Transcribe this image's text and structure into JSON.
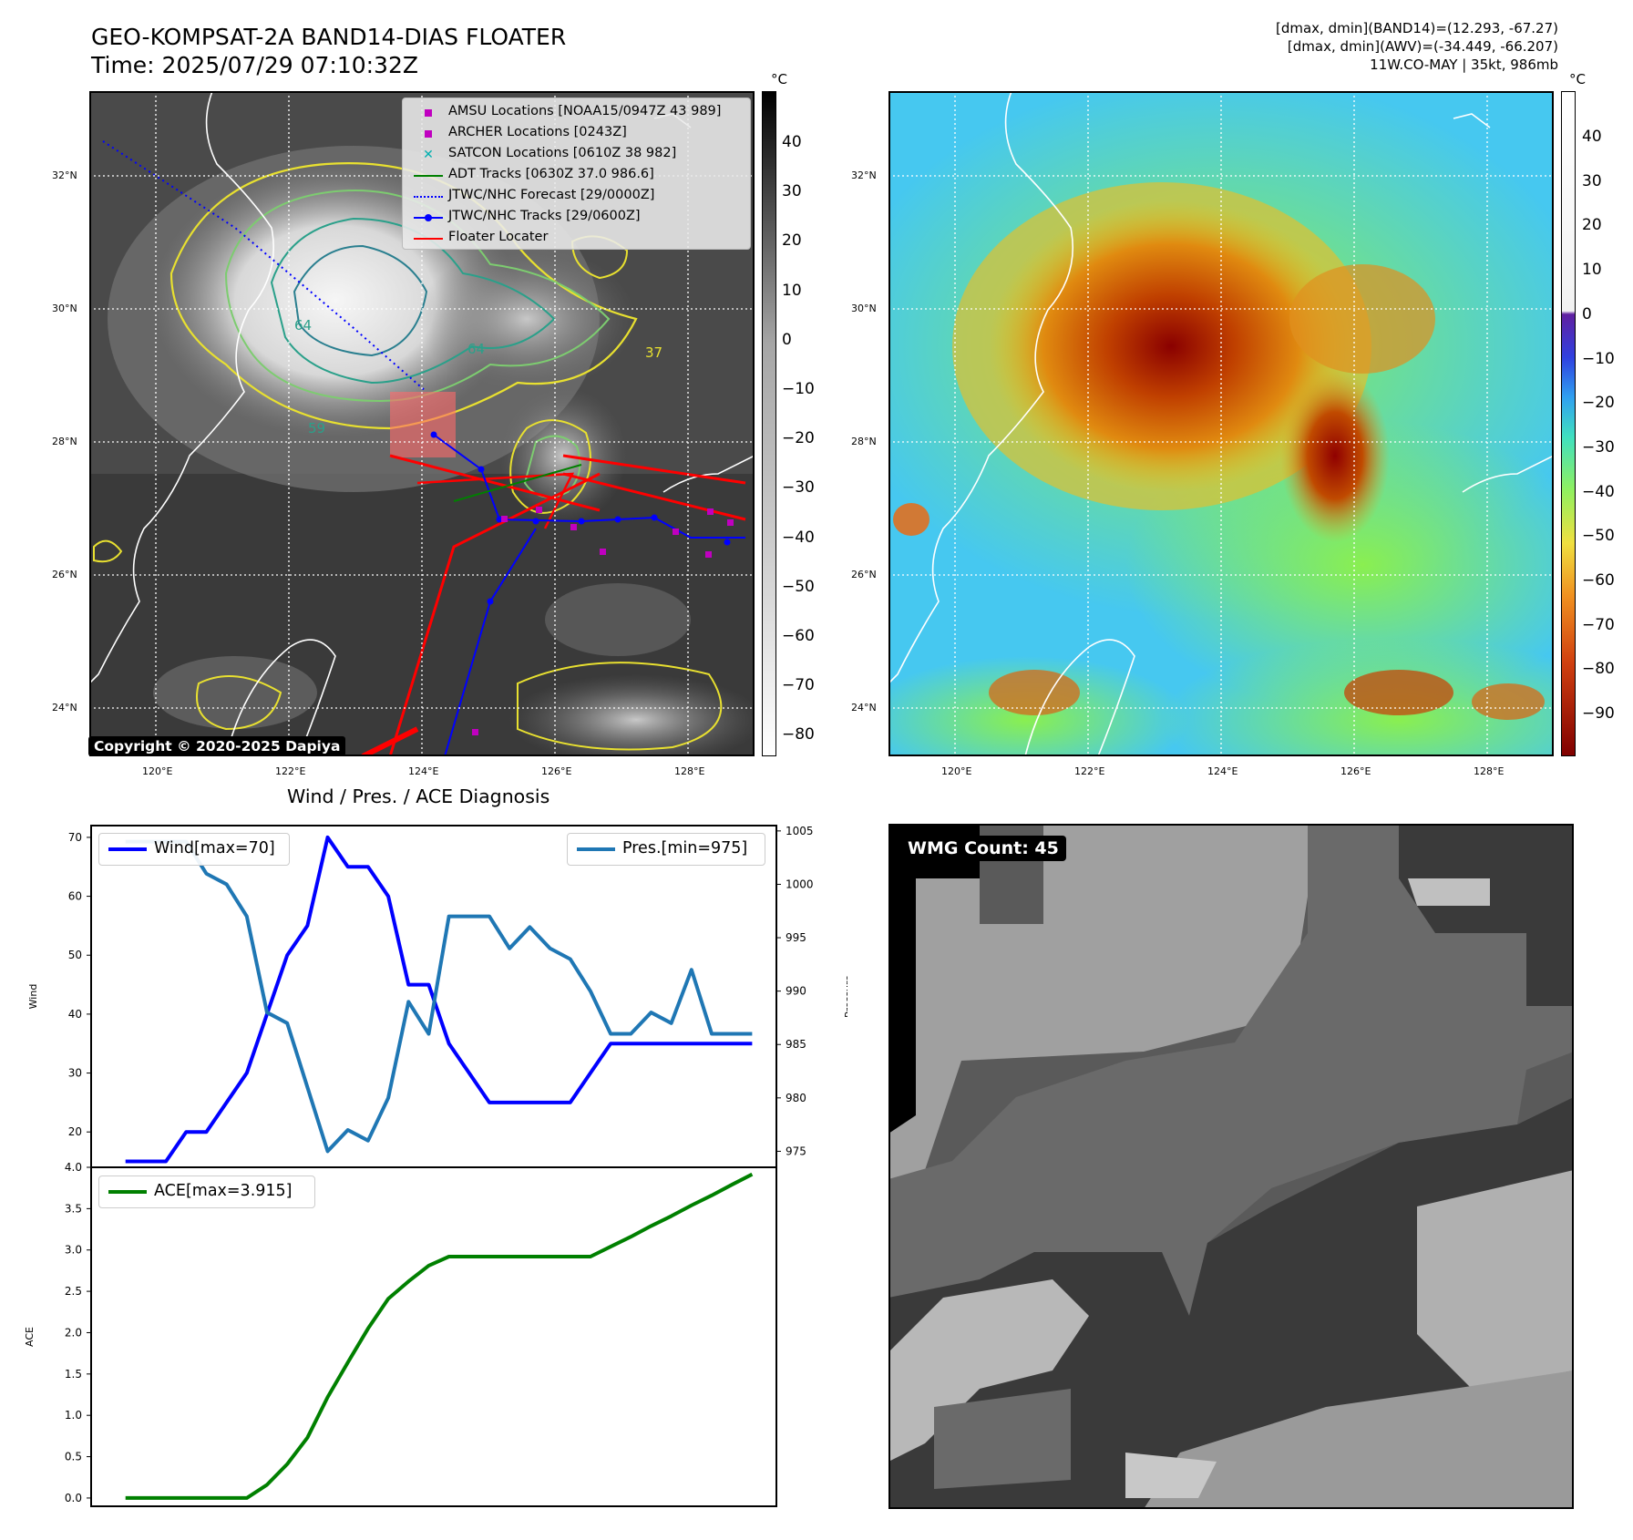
{
  "header": {
    "title_line1": "GEO-KOMPSAT-2A BAND14-DIAS FLOATER",
    "title_line2": "Time: 2025/07/29 07:10:32Z",
    "info_line1": "[dmax, dmin](BAND14)=(12.293, -67.27)",
    "info_line2": "[dmax, dmin](AWV)=(-34.449, -66.207)",
    "info_line3": "11W.CO-MAY | 35kt, 986mb"
  },
  "maps": {
    "lon_ticks": [
      "120°E",
      "122°E",
      "124°E",
      "126°E",
      "128°E"
    ],
    "lat_ticks": [
      "32°N",
      "30°N",
      "28°N",
      "26°N",
      "24°N"
    ],
    "colorbar_unit": "°C",
    "left_colorbar_ticks": [
      "40",
      "30",
      "20",
      "10",
      "0",
      "−10",
      "−20",
      "−30",
      "−40",
      "−50",
      "−60",
      "−70",
      "−80"
    ],
    "right_colorbar_ticks": [
      "40",
      "30",
      "20",
      "10",
      "0",
      "−10",
      "−20",
      "−30",
      "−40",
      "−50",
      "−60",
      "−70",
      "−80",
      "−90"
    ],
    "contour_labels": [
      "64",
      "64",
      "59",
      "37"
    ],
    "copyright": "Copyright © 2020-2025 Dapiya"
  },
  "legend": {
    "items": [
      {
        "label": "AMSU Locations [NOAA15/0947Z 43 989]",
        "color": "#c000c0"
      },
      {
        "label": "ARCHER Locations [0243Z]",
        "color": "#c000c0"
      },
      {
        "label": "SATCON Locations [0610Z 38 982]",
        "color": "#00b0b0"
      },
      {
        "label": "ADT Tracks [0630Z 37.0 986.6]",
        "color": "#008000"
      },
      {
        "label": "JTWC/NHC Forecast [29/0000Z]",
        "color": "#0000ff"
      },
      {
        "label": "JTWC/NHC Tracks [29/0600Z]",
        "color": "#0000ff"
      },
      {
        "label": "Floater Locater",
        "color": "#ff0000"
      }
    ]
  },
  "diagnosis": {
    "title": "Wind / Pres. / ACE Diagnosis",
    "wmg_label": "WMG Count: 45"
  },
  "chart_data": [
    {
      "type": "line",
      "ylabel": "Wind",
      "y2label": "Pressure",
      "ylim": [
        14,
        72
      ],
      "y2lim": [
        973.5,
        1005.5
      ],
      "yticks": [
        20,
        30,
        40,
        50,
        60,
        70
      ],
      "y2ticks": [
        975,
        980,
        985,
        990,
        995,
        1000,
        1005
      ],
      "x": [
        0,
        1,
        2,
        3,
        4,
        5,
        6,
        7,
        8,
        9,
        10,
        11,
        12,
        13,
        14,
        15,
        16,
        17,
        18,
        19,
        20,
        21,
        22,
        23,
        24,
        25,
        26,
        27,
        28,
        29,
        30,
        31
      ],
      "series": [
        {
          "name": "Wind[max=70]",
          "axis": "left",
          "color": "#0000ff",
          "values": [
            15,
            15,
            15,
            20,
            20,
            25,
            30,
            40,
            50,
            55,
            70,
            65,
            65,
            60,
            45,
            45,
            35,
            30,
            25,
            25,
            25,
            25,
            25,
            30,
            35,
            35,
            35,
            35,
            35,
            35,
            35,
            35
          ]
        },
        {
          "name": "Pres.[min=975]",
          "axis": "right",
          "color": "#1f77b4",
          "values": [
            1004,
            1004,
            1004,
            1004,
            1001,
            1000,
            997,
            988,
            987,
            981,
            975,
            977,
            976,
            980,
            989,
            986,
            997,
            997,
            997,
            994,
            996,
            994,
            993,
            990,
            986,
            986,
            988,
            987,
            992,
            986,
            986,
            986
          ]
        }
      ]
    },
    {
      "type": "line",
      "ylabel": "ACE",
      "ylim": [
        -0.1,
        4.0
      ],
      "yticks": [
        "0.0",
        "0.5",
        "1.0",
        "1.5",
        "2.0",
        "2.5",
        "3.0",
        "3.5",
        "4.0"
      ],
      "x": [
        0,
        1,
        2,
        3,
        4,
        5,
        6,
        7,
        8,
        9,
        10,
        11,
        12,
        13,
        14,
        15,
        16,
        17,
        18,
        19,
        20,
        21,
        22,
        23,
        24,
        25,
        26,
        27,
        28,
        29,
        30,
        31
      ],
      "series": [
        {
          "name": "ACE[max=3.915]",
          "color": "#008000",
          "values": [
            0,
            0,
            0,
            0,
            0,
            0,
            0,
            0.16,
            0.41,
            0.73,
            1.22,
            1.64,
            2.05,
            2.41,
            2.62,
            2.81,
            2.92,
            2.92,
            2.92,
            2.92,
            2.92,
            2.92,
            2.92,
            2.92,
            3.04,
            3.16,
            3.29,
            3.41,
            3.54,
            3.66,
            3.79,
            3.915
          ]
        }
      ]
    }
  ]
}
